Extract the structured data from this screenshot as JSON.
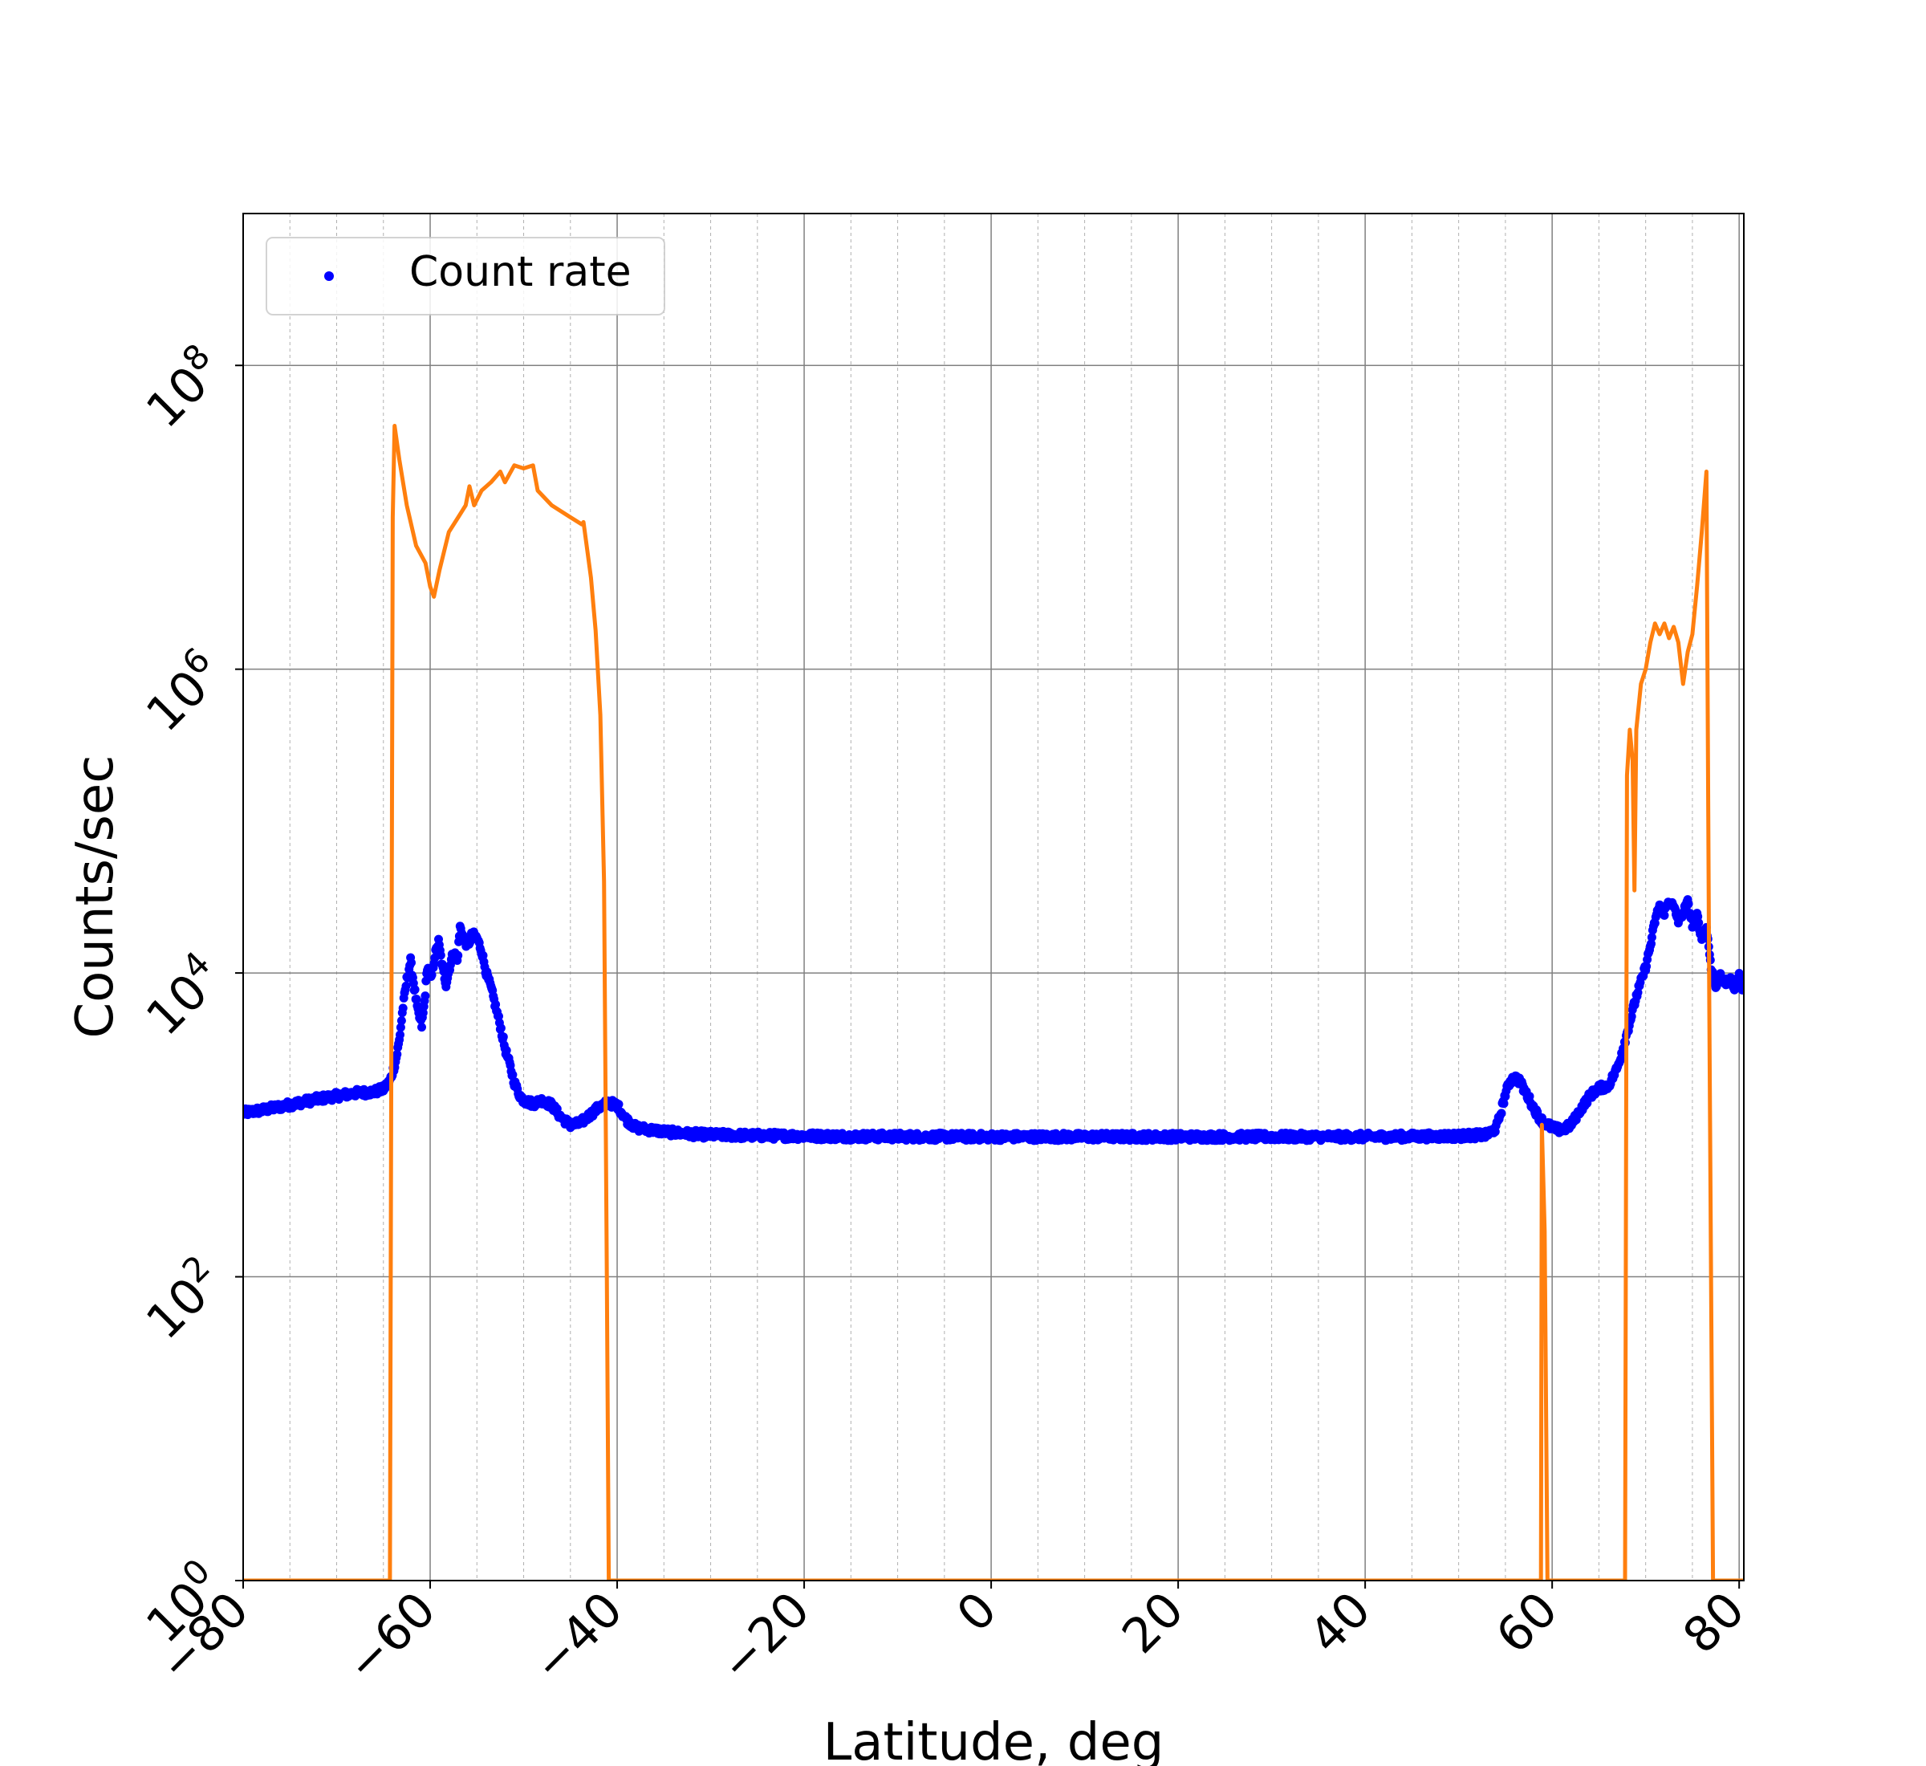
{
  "chart_data": {
    "type": "line+scatter",
    "title": "",
    "xlabel": "Latitude, deg",
    "ylabel": "Counts/sec",
    "xlim": [
      -80,
      80.5
    ],
    "ylim": [
      1,
      1000000000
    ],
    "yscale": "log",
    "grid": true,
    "legend": {
      "location": "upper-left",
      "entries": [
        {
          "label": "Count rate",
          "marker": "dot",
          "color": "#0000ff"
        }
      ]
    },
    "x_ticks": [
      -80,
      -60,
      -40,
      -20,
      0,
      20,
      40,
      60,
      80
    ],
    "x_tick_labels": [
      "−80",
      "−60",
      "−40",
      "−20",
      "0",
      "20",
      "40",
      "60",
      "80"
    ],
    "y_ticks": [
      {
        "value": 1,
        "base": "10",
        "exponent": "0"
      },
      {
        "value": 100,
        "base": "10",
        "exponent": "2"
      },
      {
        "value": 10000,
        "base": "10",
        "exponent": "4"
      },
      {
        "value": 1000000,
        "base": "10",
        "exponent": "6"
      },
      {
        "value": 100000000,
        "base": "10",
        "exponent": "8"
      }
    ],
    "series": [
      {
        "name": "Count rate",
        "style": "scatter",
        "color": "#0000ff",
        "points": [
          [
            -80,
            1200
          ],
          [
            -78,
            1250
          ],
          [
            -76,
            1320
          ],
          [
            -74,
            1400
          ],
          [
            -72,
            1480
          ],
          [
            -70,
            1550
          ],
          [
            -68,
            1620
          ],
          [
            -66,
            1650
          ],
          [
            -65,
            1720
          ],
          [
            -64.3,
            1950
          ],
          [
            -63.7,
            2600
          ],
          [
            -63.3,
            3600
          ],
          [
            -62.9,
            6000
          ],
          [
            -62.5,
            9000
          ],
          [
            -62.1,
            12000
          ],
          [
            -61.7,
            8000
          ],
          [
            -61.3,
            5500
          ],
          [
            -60.9,
            4500
          ],
          [
            -60.6,
            6500
          ],
          [
            -60.3,
            11000
          ],
          [
            -59.9,
            9000
          ],
          [
            -59.5,
            13000
          ],
          [
            -59.1,
            16000
          ],
          [
            -58.7,
            11000
          ],
          [
            -58.3,
            8500
          ],
          [
            -57.9,
            11000
          ],
          [
            -57.5,
            14000
          ],
          [
            -57.1,
            12000
          ],
          [
            -56.8,
            20000
          ],
          [
            -56.4,
            17000
          ],
          [
            -56,
            15000
          ],
          [
            -55.5,
            18000
          ],
          [
            -55,
            17000
          ],
          [
            -54.5,
            14000
          ],
          [
            -54,
            10000
          ],
          [
            -53.5,
            8000
          ],
          [
            -53,
            6000
          ],
          [
            -52.5,
            4500
          ],
          [
            -52,
            3200
          ],
          [
            -51.5,
            2500
          ],
          [
            -51,
            1900
          ],
          [
            -50.5,
            1600
          ],
          [
            -50,
            1450
          ],
          [
            -49,
            1380
          ],
          [
            -48,
            1450
          ],
          [
            -47,
            1350
          ],
          [
            -46,
            1120
          ],
          [
            -45,
            1000
          ],
          [
            -44,
            1020
          ],
          [
            -43,
            1150
          ],
          [
            -42,
            1300
          ],
          [
            -41,
            1400
          ],
          [
            -40,
            1350
          ],
          [
            -39,
            1080
          ],
          [
            -38,
            960
          ],
          [
            -36,
            920
          ],
          [
            -34,
            890
          ],
          [
            -32,
            870
          ],
          [
            -30,
            860
          ],
          [
            -25,
            850
          ],
          [
            -20,
            845
          ],
          [
            -15,
            840
          ],
          [
            -10,
            838
          ],
          [
            -5,
            835
          ],
          [
            0,
            835
          ],
          [
            5,
            835
          ],
          [
            10,
            835
          ],
          [
            15,
            835
          ],
          [
            20,
            835
          ],
          [
            25,
            835
          ],
          [
            30,
            835
          ],
          [
            35,
            835
          ],
          [
            40,
            835
          ],
          [
            45,
            838
          ],
          [
            50,
            845
          ],
          [
            53,
            860
          ],
          [
            54,
            950
          ],
          [
            54.5,
            1200
          ],
          [
            55,
            1600
          ],
          [
            55.5,
            1950
          ],
          [
            56,
            2050
          ],
          [
            56.5,
            1950
          ],
          [
            57,
            1700
          ],
          [
            57.5,
            1500
          ],
          [
            58,
            1300
          ],
          [
            58.5,
            1150
          ],
          [
            59,
            1050
          ],
          [
            60,
            960
          ],
          [
            61,
            920
          ],
          [
            62,
            1000
          ],
          [
            63,
            1250
          ],
          [
            64,
            1550
          ],
          [
            65,
            1750
          ],
          [
            66,
            1800
          ],
          [
            67,
            2400
          ],
          [
            68,
            4000
          ],
          [
            69,
            7000
          ],
          [
            70,
            11000
          ],
          [
            70.5,
            15000
          ],
          [
            71,
            22000
          ],
          [
            71.5,
            28000
          ],
          [
            72,
            25000
          ],
          [
            72.5,
            30000
          ],
          [
            73,
            27000
          ],
          [
            73.5,
            22000
          ],
          [
            74,
            25000
          ],
          [
            74.5,
            29000
          ],
          [
            75,
            21000
          ],
          [
            75.5,
            24000
          ],
          [
            76,
            17000
          ],
          [
            76.5,
            20000
          ],
          [
            77,
            11000
          ],
          [
            77.5,
            8000
          ],
          [
            78,
            10000
          ],
          [
            78.5,
            8500
          ],
          [
            79,
            9000
          ],
          [
            79.5,
            8000
          ],
          [
            80,
            9500
          ],
          [
            80.5,
            7500
          ]
        ]
      },
      {
        "name": "",
        "style": "line",
        "color": "#ff7f0e",
        "points": [
          [
            -80,
            1
          ],
          [
            -64.3,
            1
          ],
          [
            -64,
            10000000
          ],
          [
            -63.8,
            40000000
          ],
          [
            -63.3,
            24000000
          ],
          [
            -62.5,
            12000000
          ],
          [
            -61.5,
            6500000
          ],
          [
            -60.5,
            5000000
          ],
          [
            -60,
            3500000
          ],
          [
            -59.6,
            3000000
          ],
          [
            -59,
            4500000
          ],
          [
            -58,
            8000000
          ],
          [
            -57,
            10000000
          ],
          [
            -56.2,
            12000000
          ],
          [
            -55.8,
            16000000
          ],
          [
            -55.3,
            12000000
          ],
          [
            -54.5,
            15000000
          ],
          [
            -53.5,
            17000000
          ],
          [
            -52.5,
            20000000
          ],
          [
            -52,
            17000000
          ],
          [
            -51,
            22000000
          ],
          [
            -50,
            21000000
          ],
          [
            -49,
            22000000
          ],
          [
            -48.5,
            15000000
          ],
          [
            -47,
            12000000
          ],
          [
            -45,
            10000000
          ],
          [
            -43.8,
            9000000
          ],
          [
            -43.6,
            9300000
          ],
          [
            -42.8,
            4000000
          ],
          [
            -42.3,
            1800000
          ],
          [
            -41.8,
            500000
          ],
          [
            -41.4,
            40000
          ],
          [
            -41.1,
            100
          ],
          [
            -40.9,
            1
          ],
          [
            58.8,
            1
          ],
          [
            58.9,
            1000
          ],
          [
            59.2,
            200
          ],
          [
            59.5,
            1
          ],
          [
            67.8,
            1
          ],
          [
            68,
            200000
          ],
          [
            68.3,
            400000
          ],
          [
            68.6,
            250000
          ],
          [
            68.8,
            35000
          ],
          [
            69,
            400000
          ],
          [
            69.5,
            800000
          ],
          [
            70,
            1000000
          ],
          [
            70.5,
            1500000
          ],
          [
            71,
            2000000
          ],
          [
            71.5,
            1700000
          ],
          [
            72,
            2000000
          ],
          [
            72.5,
            1600000
          ],
          [
            73,
            1900000
          ],
          [
            73.5,
            1500000
          ],
          [
            74,
            800000
          ],
          [
            74.5,
            1300000
          ],
          [
            75,
            1700000
          ],
          [
            75.5,
            3500000
          ],
          [
            76,
            8000000
          ],
          [
            76.5,
            20000000
          ],
          [
            76.8,
            7000
          ],
          [
            77.2,
            1
          ],
          [
            80.5,
            1
          ]
        ]
      }
    ]
  }
}
